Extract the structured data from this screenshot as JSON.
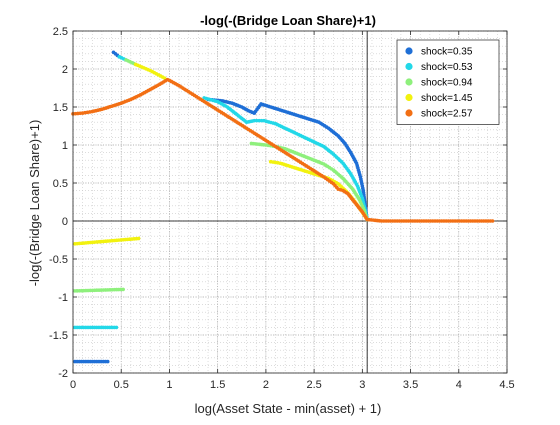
{
  "chart_data": {
    "type": "scatter",
    "title": "-log(-(Bridge Loan Share)+1)",
    "xlabel": "log(Asset State - min(asset) + 1)",
    "ylabel": "-log(-(Bridge Loan Share)+1)",
    "xlim": [
      0,
      4.5
    ],
    "ylim": [
      -2,
      2.5
    ],
    "x_ticks": [
      0,
      0.5,
      1,
      1.5,
      2,
      2.5,
      3,
      3.5,
      4,
      4.5
    ],
    "x_tick_labels": [
      "0",
      "0.5",
      "1",
      "1.5",
      "2",
      "2.5",
      "3",
      "3.5",
      "4",
      "4.5"
    ],
    "y_ticks": [
      -2,
      -1.5,
      -1,
      -0.5,
      0,
      0.5,
      1,
      1.5,
      2,
      2.5
    ],
    "y_tick_labels": [
      "-2",
      "-1.5",
      "-1",
      "-0.5",
      "0",
      "0.5",
      "1",
      "1.5",
      "2",
      "2.5"
    ],
    "grid": "minor-dotted",
    "reference_lines": {
      "x": 3.05,
      "y": 0
    },
    "legend_position": "top-right",
    "series": [
      {
        "name": "shock=0.35",
        "color": "#1f6fd6",
        "segments": [
          [
            [
              0.42,
              2.22
            ],
            [
              0.48,
              2.16
            ]
          ],
          [
            [
              0.02,
              -1.85
            ],
            [
              0.36,
              -1.85
            ]
          ],
          [
            [
              1.4,
              1.6
            ],
            [
              1.55,
              1.58
            ],
            [
              1.65,
              1.55
            ],
            [
              1.75,
              1.5
            ],
            [
              1.82,
              1.45
            ],
            [
              1.88,
              1.42
            ],
            [
              1.95,
              1.54
            ],
            [
              2.05,
              1.5
            ],
            [
              2.15,
              1.46
            ],
            [
              2.25,
              1.42
            ],
            [
              2.35,
              1.38
            ],
            [
              2.45,
              1.34
            ],
            [
              2.55,
              1.3
            ],
            [
              2.65,
              1.22
            ],
            [
              2.75,
              1.12
            ],
            [
              2.82,
              1.02
            ],
            [
              2.88,
              0.9
            ],
            [
              2.94,
              0.76
            ],
            [
              2.98,
              0.58
            ],
            [
              3.01,
              0.4
            ],
            [
              3.03,
              0.2
            ],
            [
              3.05,
              0.02
            ]
          ]
        ]
      },
      {
        "name": "shock=0.53",
        "color": "#22d8e8",
        "segments": [
          [
            [
              0.48,
              2.16
            ],
            [
              0.55,
              2.12
            ]
          ],
          [
            [
              0.02,
              -1.4
            ],
            [
              0.45,
              -1.4
            ]
          ],
          [
            [
              1.36,
              1.62
            ],
            [
              1.5,
              1.57
            ],
            [
              1.6,
              1.5
            ],
            [
              1.7,
              1.4
            ],
            [
              1.8,
              1.3
            ],
            [
              1.88,
              1.32
            ],
            [
              1.98,
              1.32
            ],
            [
              2.1,
              1.28
            ],
            [
              2.2,
              1.22
            ],
            [
              2.3,
              1.16
            ],
            [
              2.4,
              1.1
            ],
            [
              2.5,
              1.04
            ],
            [
              2.6,
              0.98
            ],
            [
              2.7,
              0.88
            ],
            [
              2.8,
              0.76
            ],
            [
              2.88,
              0.62
            ],
            [
              2.95,
              0.46
            ],
            [
              3.0,
              0.3
            ],
            [
              3.03,
              0.14
            ],
            [
              3.05,
              0.02
            ]
          ]
        ]
      },
      {
        "name": "shock=0.94",
        "color": "#8ef07c",
        "segments": [
          [
            [
              0.55,
              2.12
            ],
            [
              0.65,
              2.06
            ]
          ],
          [
            [
              0.02,
              -0.92
            ],
            [
              0.52,
              -0.9
            ]
          ],
          [
            [
              1.85,
              1.02
            ],
            [
              2.0,
              1.0
            ],
            [
              2.1,
              0.98
            ],
            [
              2.2,
              0.95
            ],
            [
              2.3,
              0.9
            ],
            [
              2.4,
              0.85
            ],
            [
              2.5,
              0.8
            ],
            [
              2.6,
              0.75
            ],
            [
              2.7,
              0.67
            ],
            [
              2.8,
              0.56
            ],
            [
              2.9,
              0.42
            ],
            [
              2.97,
              0.28
            ],
            [
              3.02,
              0.14
            ],
            [
              3.05,
              0.02
            ]
          ]
        ]
      },
      {
        "name": "shock=1.45",
        "color": "#f2f20f",
        "segments": [
          [
            [
              0.65,
              2.06
            ],
            [
              0.8,
              1.98
            ],
            [
              0.95,
              1.88
            ]
          ],
          [
            [
              0.02,
              -0.3
            ],
            [
              0.68,
              -0.23
            ]
          ],
          [
            [
              2.05,
              0.78
            ],
            [
              2.15,
              0.76
            ],
            [
              2.25,
              0.72
            ],
            [
              2.35,
              0.68
            ],
            [
              2.45,
              0.64
            ],
            [
              2.55,
              0.6
            ],
            [
              2.65,
              0.56
            ],
            [
              2.75,
              0.49
            ],
            [
              2.85,
              0.37
            ],
            [
              2.92,
              0.26
            ],
            [
              2.98,
              0.15
            ],
            [
              3.03,
              0.06
            ],
            [
              3.05,
              0.02
            ]
          ]
        ]
      },
      {
        "name": "shock=2.57",
        "color": "#f26f14",
        "segments": [
          [
            [
              0.0,
              1.41
            ],
            [
              0.1,
              1.42
            ],
            [
              0.2,
              1.44
            ],
            [
              0.3,
              1.47
            ],
            [
              0.4,
              1.51
            ],
            [
              0.5,
              1.55
            ],
            [
              0.6,
              1.6
            ],
            [
              0.7,
              1.66
            ],
            [
              0.8,
              1.73
            ],
            [
              0.9,
              1.8
            ],
            [
              0.98,
              1.86
            ]
          ],
          [
            [
              1.0,
              1.85
            ],
            [
              1.1,
              1.78
            ],
            [
              1.2,
              1.7
            ],
            [
              1.3,
              1.62
            ],
            [
              1.4,
              1.54
            ],
            [
              1.5,
              1.46
            ],
            [
              1.6,
              1.38
            ],
            [
              1.7,
              1.3
            ],
            [
              1.8,
              1.22
            ],
            [
              1.9,
              1.14
            ],
            [
              2.0,
              1.06
            ],
            [
              2.1,
              0.98
            ],
            [
              2.2,
              0.9
            ],
            [
              2.3,
              0.82
            ],
            [
              2.4,
              0.74
            ],
            [
              2.5,
              0.66
            ],
            [
              2.6,
              0.58
            ],
            [
              2.7,
              0.49
            ],
            [
              2.75,
              0.42
            ],
            [
              2.8,
              0.4
            ],
            [
              2.85,
              0.36
            ],
            [
              2.9,
              0.28
            ],
            [
              2.95,
              0.2
            ],
            [
              3.0,
              0.12
            ],
            [
              3.05,
              0.02
            ],
            [
              3.2,
              0.0
            ],
            [
              3.5,
              0.0
            ],
            [
              3.8,
              0.0
            ],
            [
              4.1,
              0.0
            ],
            [
              4.35,
              0.0
            ]
          ]
        ]
      }
    ]
  }
}
